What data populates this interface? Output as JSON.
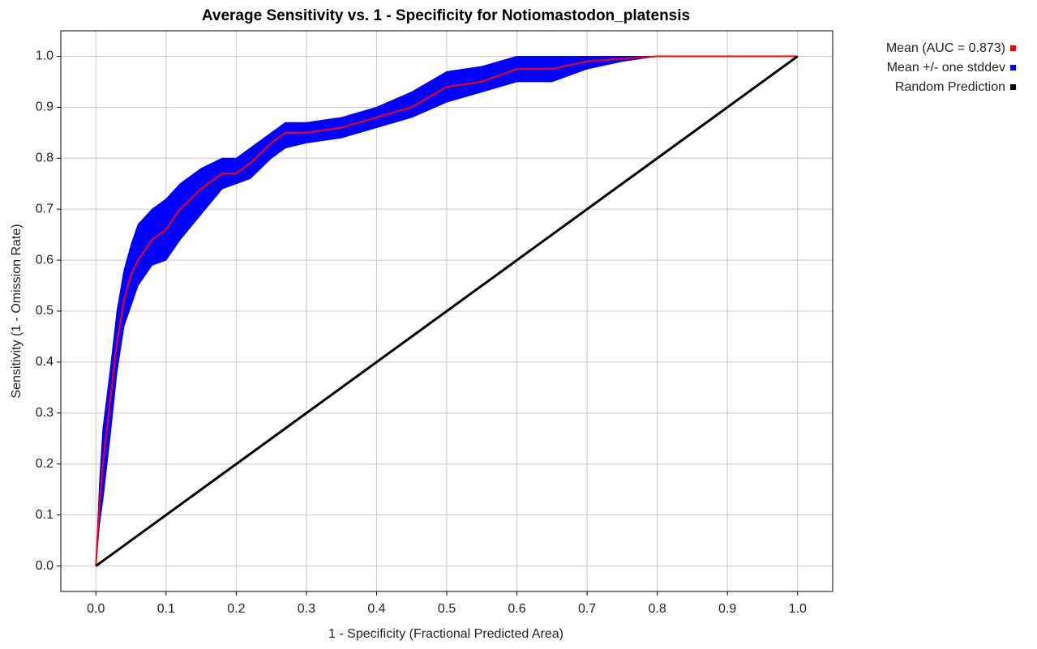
{
  "chart_data": {
    "type": "line",
    "title": "Average Sensitivity vs. 1 - Specificity for Notiomastodon_platensis",
    "x_label": "1 - Specificity (Fractional Predicted Area)",
    "y_label": "Sensitivity (1 - Omission Rate)",
    "x": [
      0,
      0.005,
      0.01,
      0.02,
      0.03,
      0.04,
      0.05,
      0.06,
      0.08,
      0.1,
      0.12,
      0.15,
      0.18,
      0.2,
      0.22,
      0.25,
      0.27,
      0.3,
      0.35,
      0.4,
      0.45,
      0.5,
      0.55,
      0.6,
      0.65,
      0.7,
      0.75,
      0.8,
      0.85,
      0.9,
      1.0
    ],
    "series": [
      {
        "name": "Mean (AUC = 0.873)",
        "color": "#ff0000",
        "values": [
          0,
          0.12,
          0.2,
          0.32,
          0.44,
          0.52,
          0.57,
          0.6,
          0.64,
          0.66,
          0.7,
          0.74,
          0.77,
          0.77,
          0.79,
          0.83,
          0.85,
          0.85,
          0.86,
          0.88,
          0.9,
          0.94,
          0.95,
          0.975,
          0.975,
          0.99,
          0.995,
          1,
          1,
          1,
          1
        ]
      },
      {
        "name": "Mean +/- one stddev",
        "color": "#0000ff",
        "upper": [
          0,
          0.16,
          0.27,
          0.38,
          0.5,
          0.58,
          0.63,
          0.67,
          0.7,
          0.72,
          0.75,
          0.78,
          0.8,
          0.8,
          0.82,
          0.85,
          0.87,
          0.87,
          0.88,
          0.9,
          0.93,
          0.97,
          0.98,
          1,
          1,
          1,
          1,
          1,
          1,
          1,
          1
        ],
        "lower": [
          0,
          0.08,
          0.13,
          0.25,
          0.38,
          0.47,
          0.51,
          0.55,
          0.59,
          0.6,
          0.64,
          0.69,
          0.74,
          0.75,
          0.76,
          0.8,
          0.82,
          0.83,
          0.84,
          0.86,
          0.88,
          0.91,
          0.93,
          0.95,
          0.95,
          0.975,
          0.99,
          1,
          1,
          1,
          1
        ]
      },
      {
        "name": "Random Prediction",
        "color": "#000000",
        "x": [
          0,
          1
        ],
        "values": [
          0,
          1
        ]
      }
    ],
    "xlim": [
      -0.05,
      1.05
    ],
    "ylim": [
      -0.05,
      1.05
    ],
    "xticks": [
      {
        "value": 0,
        "label": "0.0"
      },
      {
        "value": 0.1,
        "label": "0.1"
      },
      {
        "value": 0.2,
        "label": "0.2"
      },
      {
        "value": 0.3,
        "label": "0.3"
      },
      {
        "value": 0.4,
        "label": "0.4"
      },
      {
        "value": 0.5,
        "label": "0.5"
      },
      {
        "value": 0.6,
        "label": "0.6"
      },
      {
        "value": 0.7,
        "label": "0.7"
      },
      {
        "value": 0.8,
        "label": "0.8"
      },
      {
        "value": 0.9,
        "label": "0.9"
      },
      {
        "value": 1,
        "label": "1.0"
      }
    ],
    "yticks": [
      {
        "value": 0,
        "label": "0.0"
      },
      {
        "value": 0.1,
        "label": "0.1"
      },
      {
        "value": 0.2,
        "label": "0.2"
      },
      {
        "value": 0.3,
        "label": "0.3"
      },
      {
        "value": 0.4,
        "label": "0.4"
      },
      {
        "value": 0.5,
        "label": "0.5"
      },
      {
        "value": 0.6,
        "label": "0.6"
      },
      {
        "value": 0.7,
        "label": "0.7"
      },
      {
        "value": 0.8,
        "label": "0.8"
      },
      {
        "value": 0.9,
        "label": "0.9"
      },
      {
        "value": 1,
        "label": "1.0"
      }
    ],
    "grid": true,
    "legend": "right"
  }
}
